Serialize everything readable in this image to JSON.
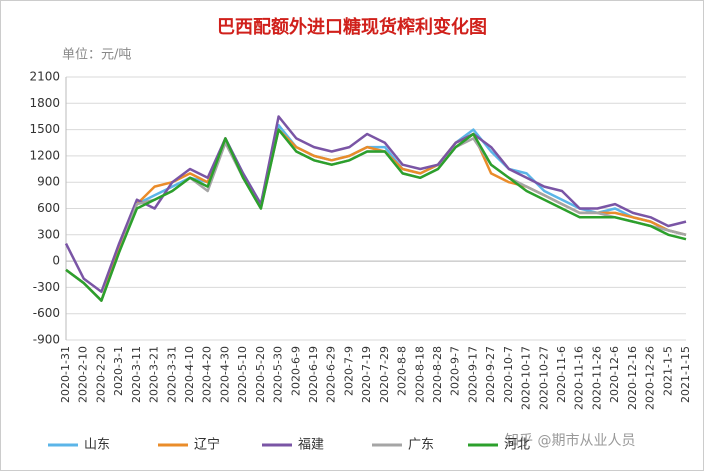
{
  "chart_data": {
    "type": "line",
    "title": "巴西配额外进口糖现货榨利变化图",
    "subtitle": "单位：元/吨",
    "annotation": "知乎 @期市从业人员",
    "categories": [
      "2020-1-31",
      "2020-2-10",
      "2020-2-20",
      "2020-3-1",
      "2020-3-11",
      "2020-3-21",
      "2020-3-31",
      "2020-4-10",
      "2020-4-20",
      "2020-4-30",
      "2020-5-10",
      "2020-5-20",
      "2020-5-30",
      "2020-6-9",
      "2020-6-19",
      "2020-6-29",
      "2020-7-9",
      "2020-7-19",
      "2020-7-29",
      "2020-8-8",
      "2020-8-18",
      "2020-8-28",
      "2020-9-7",
      "2020-9-17",
      "2020-9-27",
      "2020-10-7",
      "2020-10-17",
      "2020-10-27",
      "2020-11-6",
      "2020-11-16",
      "2020-11-26",
      "2020-12-6",
      "2020-12-16",
      "2020-12-26",
      "2021-1-5",
      "2021-1-15"
    ],
    "series": [
      {
        "name": "山东",
        "color": "#5bb5e8",
        "values": [
          -100,
          -250,
          -450,
          150,
          650,
          750,
          850,
          950,
          900,
          1400,
          1000,
          650,
          1550,
          1300,
          1200,
          1150,
          1200,
          1300,
          1300,
          1050,
          1000,
          1100,
          1350,
          1500,
          1250,
          1050,
          1000,
          800,
          700,
          600,
          550,
          600,
          500,
          450,
          350,
          300
        ]
      },
      {
        "name": "辽宁",
        "color": "#ea8c2a",
        "values": [
          -100,
          -250,
          -450,
          150,
          650,
          850,
          900,
          1000,
          900,
          1400,
          950,
          650,
          1500,
          1300,
          1200,
          1150,
          1200,
          1300,
          1250,
          1050,
          1000,
          1100,
          1350,
          1450,
          1000,
          900,
          850,
          750,
          650,
          550,
          550,
          550,
          500,
          450,
          350,
          300
        ]
      },
      {
        "name": "福建",
        "color": "#7a55a5",
        "values": [
          200,
          -200,
          -350,
          200,
          700,
          600,
          900,
          1050,
          950,
          1400,
          1000,
          650,
          1650,
          1400,
          1300,
          1250,
          1300,
          1450,
          1350,
          1100,
          1050,
          1100,
          1350,
          1450,
          1300,
          1050,
          950,
          850,
          800,
          600,
          600,
          650,
          550,
          500,
          400,
          450
        ]
      },
      {
        "name": "广东",
        "color": "#a5a5a5",
        "values": [
          -100,
          -250,
          -450,
          100,
          650,
          700,
          800,
          950,
          800,
          1350,
          950,
          600,
          1500,
          1250,
          1150,
          1100,
          1150,
          1250,
          1250,
          1000,
          950,
          1050,
          1300,
          1400,
          1100,
          950,
          850,
          750,
          650,
          550,
          550,
          500,
          450,
          400,
          350,
          300
        ]
      },
      {
        "name": "河北",
        "color": "#2ca02c",
        "values": [
          -100,
          -250,
          -450,
          100,
          600,
          700,
          800,
          950,
          850,
          1400,
          950,
          600,
          1500,
          1250,
          1150,
          1100,
          1150,
          1250,
          1250,
          1000,
          950,
          1050,
          1300,
          1450,
          1100,
          950,
          800,
          700,
          600,
          500,
          500,
          500,
          450,
          400,
          300,
          250
        ]
      }
    ],
    "ylim": [
      -900,
      2100
    ],
    "yticks": [
      -900,
      -600,
      -300,
      0,
      300,
      600,
      900,
      1200,
      1500,
      1800,
      2100
    ],
    "grid": true
  }
}
